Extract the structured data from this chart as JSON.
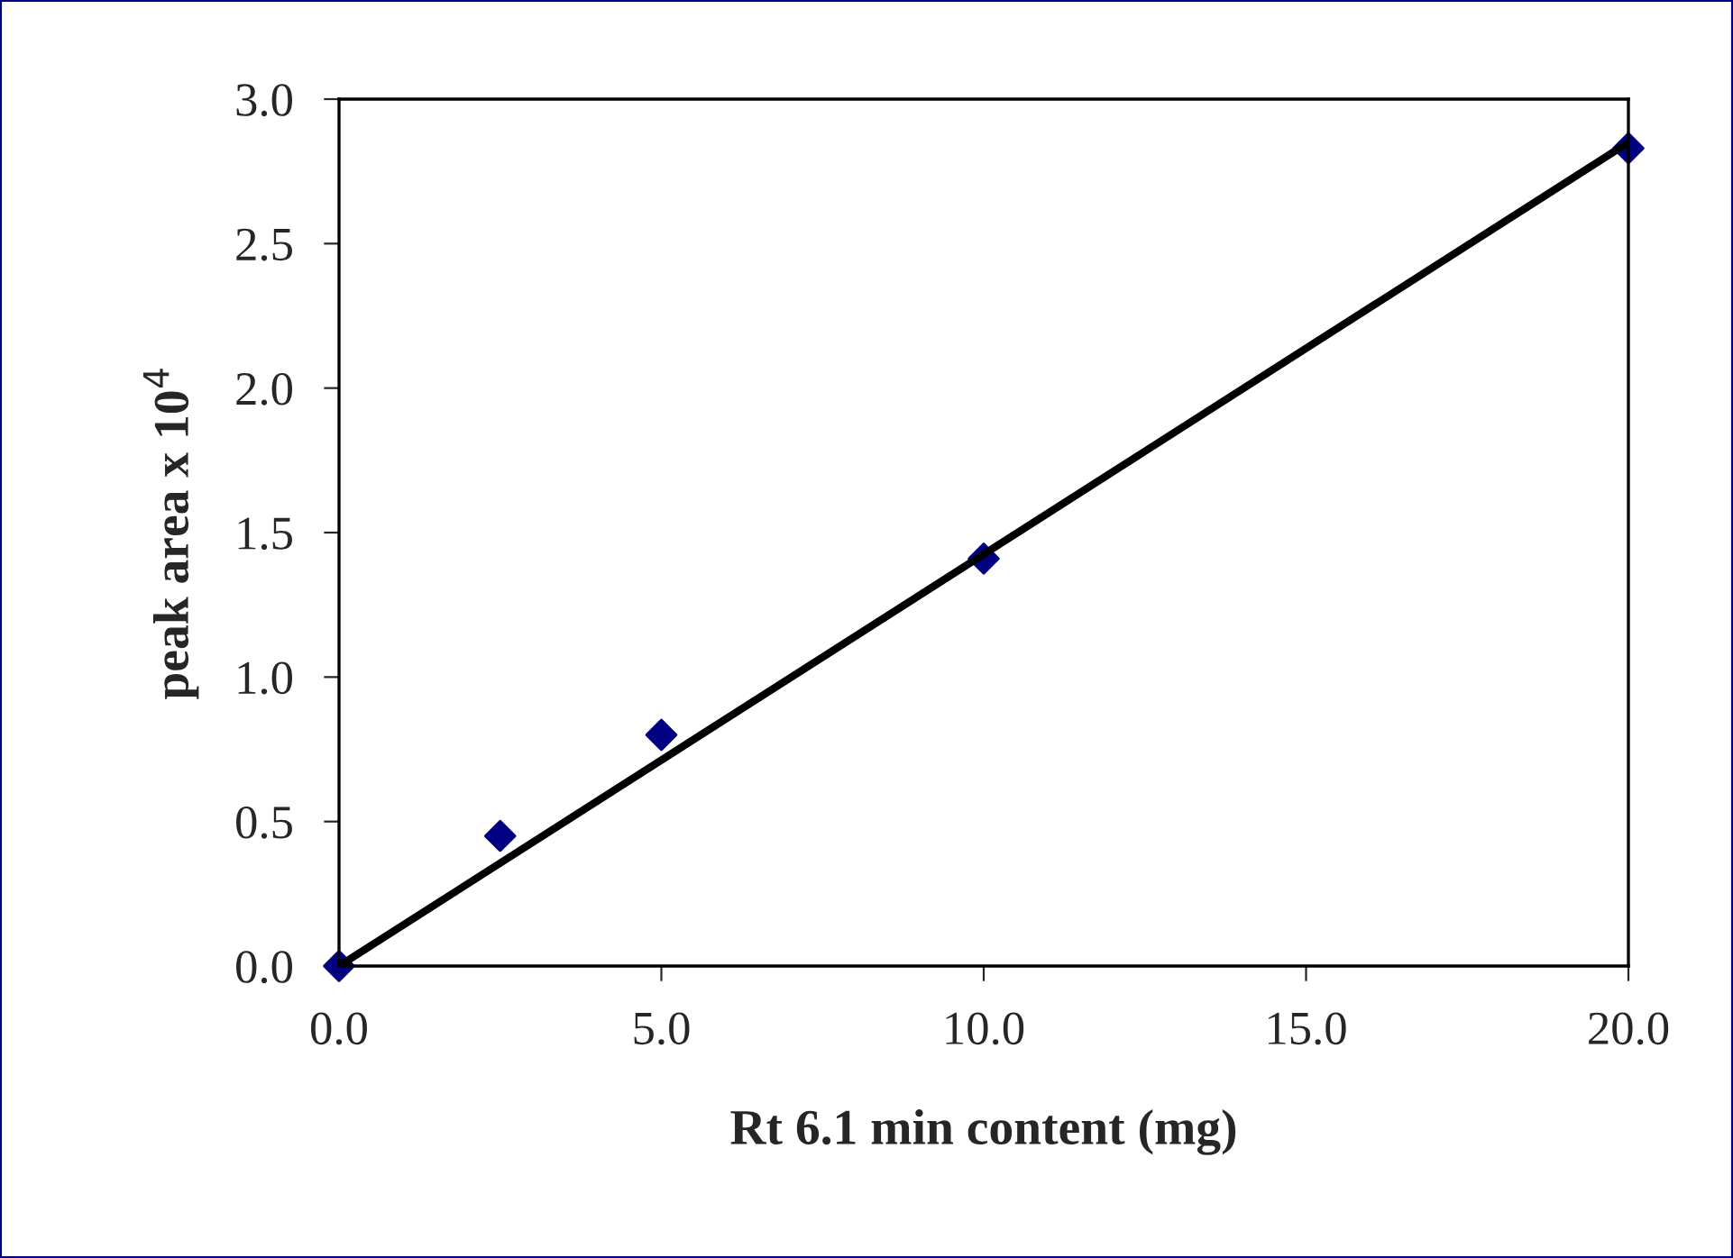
{
  "chart_data": {
    "type": "scatter",
    "xlabel": "Rt 6.1 min content (mg)",
    "ylabel": "peak area x 10$^{4}$",
    "xlim": [
      0,
      20
    ],
    "ylim": [
      0,
      3
    ],
    "xticks": [
      {
        "value": 0,
        "label": "0.0"
      },
      {
        "value": 5,
        "label": "5.0"
      },
      {
        "value": 10,
        "label": "10.0"
      },
      {
        "value": 15,
        "label": "15.0"
      },
      {
        "value": 20,
        "label": "20.0"
      }
    ],
    "yticks": [
      {
        "value": 0,
        "label": "0.0"
      },
      {
        "value": 0.5,
        "label": "0.5"
      },
      {
        "value": 1,
        "label": "1.0"
      },
      {
        "value": 1.5,
        "label": "1.5"
      },
      {
        "value": 2,
        "label": "2.0"
      },
      {
        "value": 2.5,
        "label": "2.5"
      },
      {
        "value": 3,
        "label": "3.0"
      }
    ],
    "grid": false,
    "legend": false,
    "series": [
      {
        "marker": "diamond",
        "color": "#000080",
        "x": [
          0,
          2.5,
          5,
          10,
          20
        ],
        "values": [
          0,
          0.45,
          0.8,
          1.41,
          2.83
        ]
      },
      {
        "type": "line",
        "color": "#000000",
        "x": [
          0,
          20
        ],
        "values": [
          0,
          2.85
        ],
        "line_style": "solid"
      }
    ]
  }
}
